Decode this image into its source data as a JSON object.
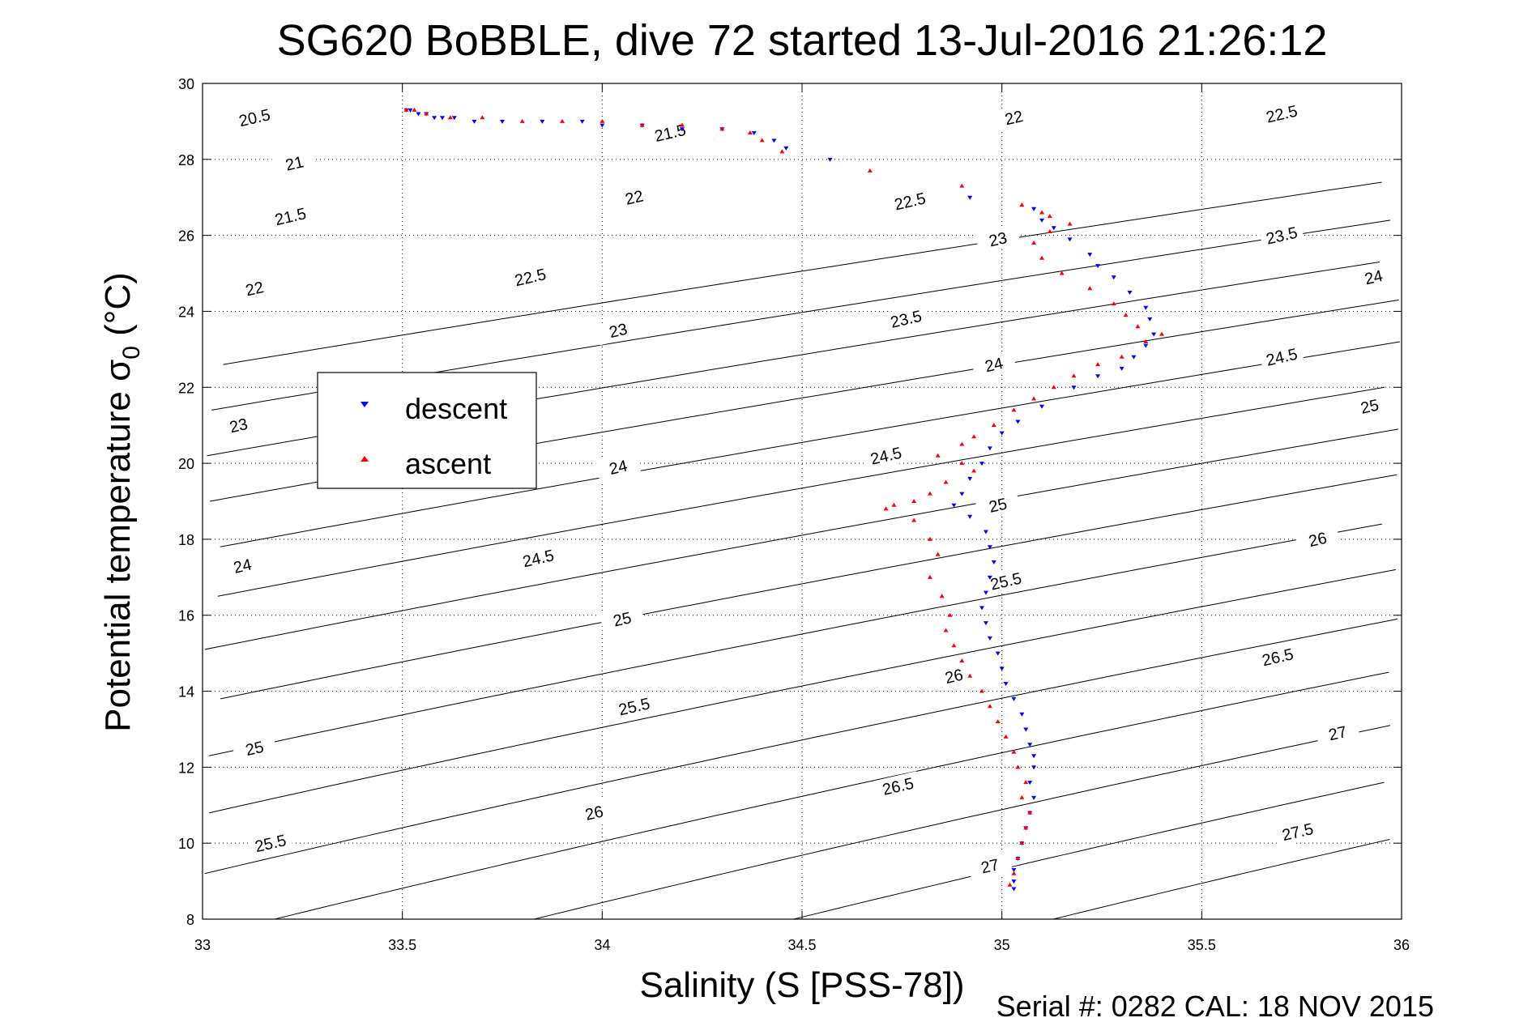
{
  "chart_data": {
    "type": "scatter",
    "title": "SG620 BoBBLE, dive 72 started 13-Jul-2016 21:26:12",
    "xlabel": "Salinity (S [PSS-78])",
    "ylabel_main": "Potential temperature ",
    "ylabel_symbol": "σ",
    "ylabel_sub": "0",
    "ylabel_unit": " (°C)",
    "xlim": [
      33,
      36
    ],
    "ylim": [
      8,
      30
    ],
    "x_ticks": [
      "33",
      "33.5",
      "34",
      "34.5",
      "35",
      "35.5",
      "36"
    ],
    "y_ticks": [
      "8",
      "10",
      "12",
      "14",
      "16",
      "18",
      "20",
      "22",
      "24",
      "26",
      "28",
      "30"
    ],
    "grid": true,
    "legend_position": "left",
    "footer": "Serial #: 0282  CAL: 18 NOV 2015",
    "contour_levels": [
      "20.5",
      "21",
      "21.5",
      "22",
      "22.5",
      "23",
      "23.5",
      "24",
      "24.5",
      "25",
      "25.5",
      "26",
      "26.5",
      "27",
      "27.5"
    ],
    "contour_labels": [
      {
        "text": "20.5",
        "x": 33.13,
        "y": 29.1
      },
      {
        "text": "21",
        "x": 33.23,
        "y": 27.9
      },
      {
        "text": "21.5",
        "x": 33.22,
        "y": 26.5
      },
      {
        "text": "22",
        "x": 33.13,
        "y": 24.6
      },
      {
        "text": "23",
        "x": 33.09,
        "y": 21.0
      },
      {
        "text": "24",
        "x": 33.1,
        "y": 17.3
      },
      {
        "text": "25",
        "x": 33.13,
        "y": 12.5
      },
      {
        "text": "25.5",
        "x": 33.17,
        "y": 10.0
      },
      {
        "text": "21.5",
        "x": 34.17,
        "y": 28.7
      },
      {
        "text": "22",
        "x": 34.08,
        "y": 27.0
      },
      {
        "text": "22.5",
        "x": 33.82,
        "y": 24.9
      },
      {
        "text": "23",
        "x": 34.04,
        "y": 23.5
      },
      {
        "text": "24",
        "x": 34.04,
        "y": 19.9
      },
      {
        "text": "24.5",
        "x": 33.84,
        "y": 17.5
      },
      {
        "text": "25",
        "x": 34.05,
        "y": 15.9
      },
      {
        "text": "25.5",
        "x": 34.08,
        "y": 13.6
      },
      {
        "text": "26",
        "x": 33.98,
        "y": 10.8
      },
      {
        "text": "22",
        "x": 35.03,
        "y": 29.1
      },
      {
        "text": "22.5",
        "x": 34.77,
        "y": 26.9
      },
      {
        "text": "23",
        "x": 34.99,
        "y": 25.9
      },
      {
        "text": "23.5",
        "x": 34.76,
        "y": 23.8
      },
      {
        "text": "24",
        "x": 34.98,
        "y": 22.6
      },
      {
        "text": "24.5",
        "x": 34.71,
        "y": 20.2
      },
      {
        "text": "25",
        "x": 34.99,
        "y": 18.9
      },
      {
        "text": "25.5",
        "x": 35.01,
        "y": 16.9
      },
      {
        "text": "26",
        "x": 34.88,
        "y": 14.4
      },
      {
        "text": "26.5",
        "x": 34.74,
        "y": 11.5
      },
      {
        "text": "27",
        "x": 34.97,
        "y": 9.4
      },
      {
        "text": "22.5",
        "x": 35.7,
        "y": 29.2
      },
      {
        "text": "23.5",
        "x": 35.7,
        "y": 26.0
      },
      {
        "text": "24",
        "x": 35.93,
        "y": 24.9
      },
      {
        "text": "24.5",
        "x": 35.7,
        "y": 22.8
      },
      {
        "text": "25",
        "x": 35.92,
        "y": 21.5
      },
      {
        "text": "26",
        "x": 35.79,
        "y": 18.0
      },
      {
        "text": "26.5",
        "x": 35.69,
        "y": 14.9
      },
      {
        "text": "27",
        "x": 35.84,
        "y": 12.9
      },
      {
        "text": "27.5",
        "x": 35.74,
        "y": 10.3
      }
    ],
    "series": [
      {
        "name": "descent",
        "color": "#0000ff",
        "marker": "triangle-down",
        "x": [
          33.51,
          33.52,
          33.54,
          33.56,
          33.58,
          33.6,
          33.63,
          33.68,
          33.75,
          33.85,
          33.95,
          34.0,
          34.1,
          34.2,
          34.3,
          34.38,
          34.43,
          34.46,
          34.57,
          34.92,
          35.08,
          35.1,
          35.13,
          35.17,
          35.22,
          35.24,
          35.28,
          35.32,
          35.36,
          35.37,
          35.38,
          35.36,
          35.33,
          35.3,
          35.24,
          35.18,
          35.1,
          35.04,
          35.0,
          34.97,
          34.95,
          34.92,
          34.9,
          34.88,
          34.92,
          34.96,
          34.97,
          34.98,
          34.97,
          34.96,
          34.95,
          34.96,
          34.97,
          34.99,
          35.0,
          35.01,
          35.03,
          35.05,
          35.06,
          35.07,
          35.08,
          35.08,
          35.07,
          35.08,
          35.07,
          35.06,
          35.05,
          35.04,
          35.03,
          35.03,
          35.03
        ],
        "y": [
          29.3,
          29.3,
          29.2,
          29.2,
          29.1,
          29.1,
          29.1,
          29.0,
          29.0,
          29.0,
          29.0,
          28.9,
          28.9,
          28.8,
          28.8,
          28.7,
          28.5,
          28.3,
          28.0,
          27.0,
          26.7,
          26.4,
          26.2,
          25.9,
          25.5,
          25.2,
          24.9,
          24.5,
          24.1,
          23.8,
          23.4,
          23.1,
          22.8,
          22.5,
          22.3,
          22.0,
          21.5,
          21.1,
          20.8,
          20.4,
          20.0,
          19.6,
          19.2,
          18.9,
          18.6,
          18.2,
          17.8,
          17.4,
          17.0,
          16.6,
          16.2,
          15.8,
          15.4,
          15.0,
          14.6,
          14.2,
          13.8,
          13.4,
          13.0,
          12.6,
          12.3,
          12.0,
          11.6,
          11.2,
          10.8,
          10.4,
          10.0,
          9.6,
          9.3,
          9.0,
          8.8
        ]
      },
      {
        "name": "ascent",
        "color": "#ff0000",
        "marker": "triangle-up",
        "x": [
          33.51,
          33.53,
          33.56,
          33.62,
          33.7,
          33.8,
          33.9,
          34.0,
          34.1,
          34.2,
          34.3,
          34.37,
          34.4,
          34.45,
          34.67,
          34.9,
          35.05,
          35.1,
          35.12,
          35.17,
          35.12,
          35.08,
          35.1,
          35.15,
          35.22,
          35.28,
          35.31,
          35.34,
          35.4,
          35.36,
          35.3,
          35.24,
          35.18,
          35.13,
          35.08,
          35.03,
          34.98,
          34.93,
          34.9,
          34.84,
          34.9,
          34.93,
          34.86,
          34.82,
          34.78,
          34.73,
          34.71,
          34.78,
          34.82,
          34.84,
          34.82,
          34.85,
          34.87,
          34.86,
          34.88,
          34.9,
          34.92,
          34.95,
          34.97,
          34.99,
          35.01,
          35.03,
          35.04,
          35.06,
          35.05,
          35.07,
          35.06,
          35.05,
          35.04,
          35.03,
          35.02
        ],
        "y": [
          29.3,
          29.3,
          29.2,
          29.1,
          29.1,
          29.0,
          29.0,
          29.0,
          28.9,
          28.9,
          28.8,
          28.7,
          28.5,
          28.2,
          27.7,
          27.3,
          26.8,
          26.6,
          26.5,
          26.3,
          26.1,
          25.8,
          25.4,
          25.0,
          24.6,
          24.2,
          23.9,
          23.6,
          23.4,
          23.2,
          22.8,
          22.6,
          22.3,
          22.0,
          21.7,
          21.4,
          21.0,
          20.7,
          20.5,
          20.2,
          20.0,
          19.8,
          19.5,
          19.2,
          19.0,
          18.9,
          18.8,
          18.5,
          18.0,
          17.6,
          17.0,
          16.5,
          16.0,
          15.6,
          15.2,
          14.8,
          14.4,
          14.0,
          13.6,
          13.2,
          12.8,
          12.4,
          12.0,
          11.6,
          11.2,
          10.8,
          10.4,
          10.0,
          9.6,
          9.2,
          8.9
        ]
      }
    ]
  }
}
